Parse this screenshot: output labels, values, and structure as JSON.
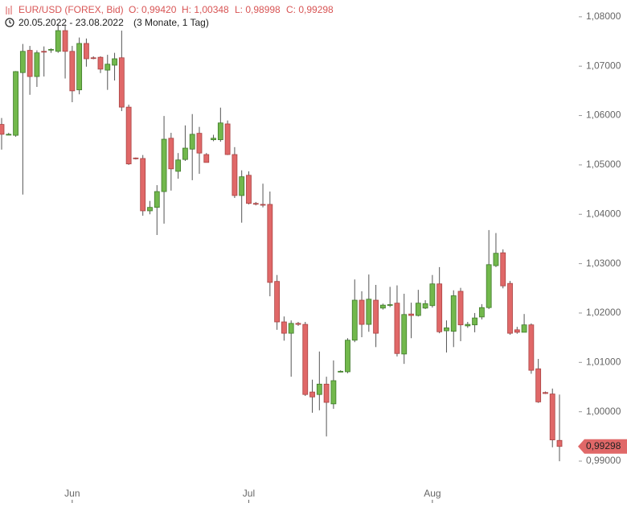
{
  "chart_data": {
    "type": "candlestick",
    "header": {
      "title": "EUR/USD (FOREX, Bid)",
      "open": "O: 0,99420",
      "high": "H: 1,00348",
      "low": "L: 0,98998",
      "close": "C: 0,99298",
      "range": "20.05.2022 - 23.08.2022",
      "period": "(3 Monate, 1 Tag)"
    },
    "categories": [
      null,
      null,
      null,
      null,
      null,
      null,
      null,
      null,
      null,
      null,
      "Jun",
      null,
      null,
      null,
      null,
      null,
      null,
      null,
      null,
      null,
      null,
      null,
      null,
      null,
      null,
      null,
      null,
      null,
      null,
      null,
      null,
      null,
      null,
      null,
      null,
      "Jul",
      null,
      null,
      null,
      null,
      null,
      null,
      null,
      null,
      null,
      null,
      null,
      null,
      null,
      null,
      null,
      null,
      null,
      null,
      null,
      null,
      null,
      null,
      null,
      null,
      null,
      "Aug",
      null,
      null,
      null,
      null,
      null,
      null,
      null,
      null,
      null,
      null,
      null,
      null,
      null,
      null,
      null,
      null,
      null,
      null
    ],
    "open": [
      1.0582,
      1.0562,
      1.056,
      1.0687,
      1.0732,
      1.0679,
      1.073,
      1.0733,
      1.073,
      1.0772,
      1.073,
      1.0652,
      1.0746,
      1.0717,
      1.0718,
      1.0692,
      1.0702,
      1.0717,
      1.0617,
      1.0514,
      1.0513,
      1.0407,
      1.0414,
      1.0446,
      1.0554,
      1.0487,
      1.0511,
      1.0532,
      1.0564,
      1.0521,
      1.0551,
      1.0551,
      1.0583,
      1.0521,
      1.0438,
      1.0479,
      1.0422,
      1.042,
      1.042,
      1.0264,
      1.0182,
      1.0159,
      1.0179,
      1.0177,
      1.004,
      1.0035,
      1.0056,
      1.0016,
      1.0081,
      1.0081,
      1.0145,
      1.0226,
      1.0177,
      1.0226,
      1.021,
      1.0216,
      1.022,
      1.0117,
      1.0198,
      1.0195,
      1.021,
      1.0215,
      1.0259,
      1.0164,
      1.0163,
      1.0244,
      1.0174,
      1.0176,
      1.0192,
      1.0211,
      1.0296,
      1.0322,
      1.026,
      1.0166,
      1.0161,
      1.0176,
      1.0087,
      1.0039,
      1.0036,
      0.9942
    ],
    "high": [
      1.0595,
      1.0565,
      1.069,
      1.0745,
      1.0741,
      1.0732,
      1.074,
      1.0736,
      1.0785,
      1.0785,
      1.0741,
      1.0758,
      1.0756,
      1.072,
      1.072,
      1.0723,
      1.0727,
      1.0772,
      1.0622,
      1.0515,
      1.052,
      1.0427,
      1.0459,
      1.0599,
      1.0565,
      1.0524,
      1.058,
      1.0603,
      1.0577,
      1.0524,
      1.0561,
      1.0616,
      1.059,
      1.0536,
      1.0489,
      1.0487,
      1.0425,
      1.0462,
      1.0446,
      1.0277,
      1.0193,
      1.0185,
      1.0182,
      1.0182,
      1.0065,
      1.0122,
      1.0071,
      1.0104,
      1.0084,
      1.0149,
      1.0268,
      1.0244,
      1.0278,
      1.0257,
      1.0219,
      1.0253,
      1.0256,
      1.0239,
      1.0221,
      1.0247,
      1.0226,
      1.0277,
      1.0293,
      1.0185,
      1.0246,
      1.0251,
      1.0182,
      1.02,
      1.0218,
      1.0368,
      1.0362,
      1.0329,
      1.0265,
      1.0172,
      1.0198,
      1.0179,
      1.0107,
      1.0041,
      1.0047,
      1.00348
    ],
    "low": [
      1.0531,
      1.056,
      1.0557,
      1.044,
      1.0642,
      1.0658,
      1.0679,
      1.0727,
      1.0727,
      1.0675,
      1.0627,
      1.0643,
      1.0699,
      1.0714,
      1.0686,
      1.0652,
      1.0671,
      1.0609,
      1.05,
      1.0511,
      1.0397,
      1.04,
      1.0358,
      1.0381,
      1.0448,
      1.0472,
      1.0508,
      1.0469,
      1.0482,
      1.0505,
      1.0548,
      1.0547,
      1.052,
      1.0433,
      1.0383,
      1.042,
      1.0418,
      1.0414,
      1.0234,
      1.0166,
      1.0144,
      1.0071,
      1.0174,
      1.0032,
      0.9998,
      1.0003,
      0.995,
      1.0006,
      1.008,
      1.0078,
      1.0141,
      1.0151,
      1.0162,
      1.0131,
      1.0207,
      1.0212,
      1.0112,
      1.0097,
      1.0149,
      1.0193,
      1.0208,
      1.0211,
      1.0159,
      1.012,
      1.0131,
      1.0143,
      1.017,
      1.0161,
      1.0187,
      1.0208,
      1.0293,
      1.025,
      1.0156,
      1.0158,
      1.0161,
      1.0077,
      1.0018,
      1.0036,
      0.9928,
      0.98998
    ],
    "close": [
      1.0562,
      1.0562,
      1.0689,
      1.073,
      1.0679,
      1.0727,
      1.0729,
      1.0734,
      1.0772,
      1.073,
      1.065,
      1.0746,
      1.0715,
      1.0716,
      1.0694,
      1.0704,
      1.0715,
      1.0617,
      1.0502,
      1.0513,
      1.0407,
      1.0414,
      1.0446,
      1.0552,
      1.0492,
      1.051,
      1.0534,
      1.0562,
      1.0524,
      1.0505,
      1.0554,
      1.0585,
      1.0521,
      1.0438,
      1.0476,
      1.0422,
      1.0421,
      1.0419,
      1.0262,
      1.0182,
      1.0159,
      1.0179,
      1.0177,
      1.0035,
      1.003,
      1.0056,
      1.0019,
      1.0063,
      1.0082,
      1.0145,
      1.0226,
      1.0177,
      1.0228,
      1.0159,
      1.0216,
      1.0217,
      1.0118,
      1.0197,
      1.0195,
      1.022,
      1.0219,
      1.0259,
      1.0162,
      1.017,
      1.0235,
      1.0176,
      1.0177,
      1.019,
      1.0211,
      1.0298,
      1.0321,
      1.0255,
      1.0159,
      1.0161,
      1.0176,
      1.0084,
      1.002,
      1.0037,
      0.9943,
      0.99298
    ],
    "up_color": "#72b84c",
    "down_color": "#e06868",
    "last_price": {
      "value": 0.99298,
      "label": "0,99298"
    },
    "ylim": [
      0.9856,
      1.0834
    ],
    "yticks": [
      {
        "value": 0.99,
        "label": "0,99000"
      },
      {
        "value": 1.0,
        "label": "1,00000"
      },
      {
        "value": 1.01,
        "label": "1,01000"
      },
      {
        "value": 1.02,
        "label": "1,02000"
      },
      {
        "value": 1.03,
        "label": "1,03000"
      },
      {
        "value": 1.04,
        "label": "1,04000"
      },
      {
        "value": 1.05,
        "label": "1,05000"
      },
      {
        "value": 1.06,
        "label": "1,06000"
      },
      {
        "value": 1.07,
        "label": "1,07000"
      },
      {
        "value": 1.08,
        "label": "1,08000"
      }
    ]
  }
}
